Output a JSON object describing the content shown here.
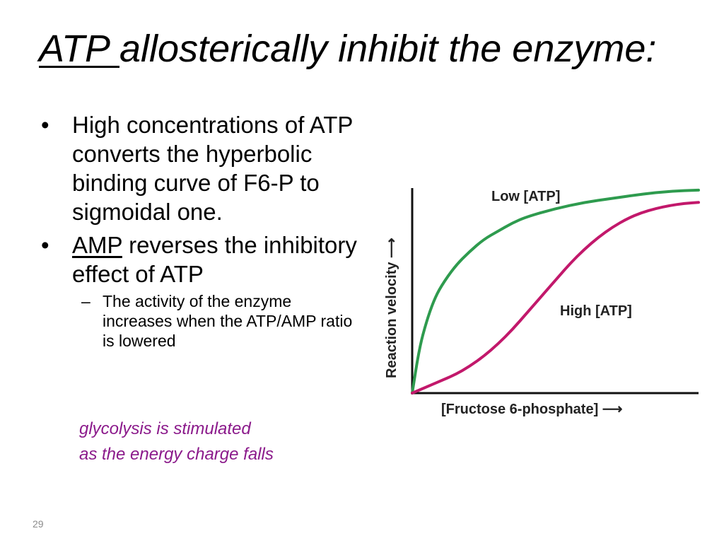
{
  "slide": {
    "title_underlined": "ATP ",
    "title_rest": "allosterically inhibit the enzyme:",
    "bullets": [
      {
        "marker": "•",
        "text": "High concentrations of ATP converts the hyperbolic binding curve of F6-P to sigmoidal one."
      },
      {
        "marker": "•",
        "underlined": "AMP",
        "text": " reverses the inhibitory effect of ATP"
      }
    ],
    "sub_bullet": {
      "marker": "–",
      "text": "The activity of the enzyme increases when the ATP/AMP ratio is lowered"
    },
    "note_line1": "glycolysis is stimulated",
    "note_line2": "as the energy charge falls",
    "note_color": "#8b1a8b",
    "page_number": "29"
  },
  "chart_data": {
    "type": "line",
    "xlabel": "[Fructose 6-phosphate] ⟶",
    "ylabel": "Reaction velocity ⟶",
    "xlim": [
      0,
      10
    ],
    "ylim": [
      0,
      1
    ],
    "grid": false,
    "series": [
      {
        "name": "Low [ATP]",
        "color": "#2e9b4e",
        "x": [
          0,
          0.25,
          0.5,
          0.75,
          1,
          1.5,
          2,
          2.5,
          3,
          3.5,
          4,
          5,
          6,
          7,
          8,
          9,
          10
        ],
        "y": [
          0,
          0.22,
          0.35,
          0.45,
          0.52,
          0.62,
          0.69,
          0.75,
          0.79,
          0.83,
          0.86,
          0.9,
          0.93,
          0.95,
          0.97,
          0.985,
          0.99
        ]
      },
      {
        "name": "High [ATP]",
        "color": "#c2186b",
        "x": [
          0,
          0.5,
          1,
          1.5,
          2,
          2.5,
          3,
          3.5,
          4,
          4.5,
          5,
          5.5,
          6,
          6.5,
          7,
          7.5,
          8,
          8.5,
          9,
          9.5,
          10
        ],
        "y": [
          0,
          0.03,
          0.06,
          0.09,
          0.13,
          0.18,
          0.24,
          0.31,
          0.39,
          0.47,
          0.55,
          0.63,
          0.7,
          0.76,
          0.81,
          0.85,
          0.88,
          0.9,
          0.915,
          0.925,
          0.93
        ]
      }
    ]
  }
}
